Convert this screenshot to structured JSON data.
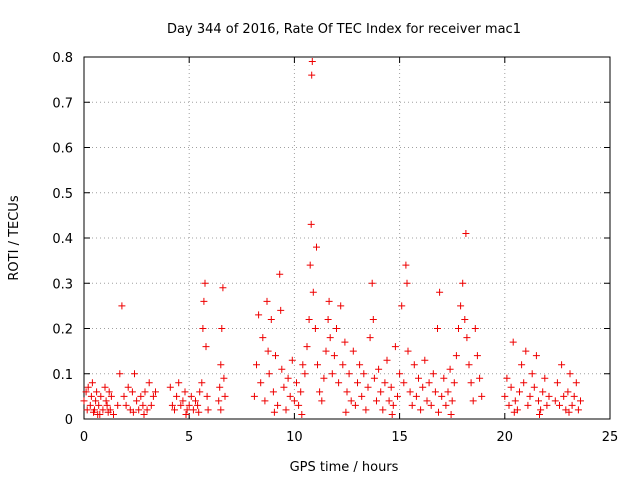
{
  "chart_data": {
    "type": "scatter",
    "title": "Day 344 of 2016, Rate Of TEC Index for receiver mac1",
    "xlabel": "GPS time / hours",
    "ylabel": "ROTI / TECUs",
    "xlim": [
      0,
      25
    ],
    "ylim": [
      0,
      0.8
    ],
    "xticks": [
      "0",
      "5",
      "10",
      "15",
      "20",
      "25"
    ],
    "yticks": [
      "0",
      "0.1",
      "0.2",
      "0.3",
      "0.4",
      "0.5",
      "0.6",
      "0.7",
      "0.8"
    ],
    "grid": true,
    "marker": "plus",
    "color": "#ee0000",
    "series": [
      {
        "name": "ROTI",
        "points": [
          [
            0.0,
            0.04
          ],
          [
            0.1,
            0.06
          ],
          [
            0.15,
            0.02
          ],
          [
            0.2,
            0.07
          ],
          [
            0.3,
            0.03
          ],
          [
            0.35,
            0.05
          ],
          [
            0.4,
            0.08
          ],
          [
            0.5,
            0.02
          ],
          [
            0.55,
            0.04
          ],
          [
            0.6,
            0.06
          ],
          [
            0.7,
            0.03
          ],
          [
            0.75,
            0.01
          ],
          [
            0.8,
            0.05
          ],
          [
            0.9,
            0.02
          ],
          [
            1.0,
            0.07
          ],
          [
            1.05,
            0.04
          ],
          [
            1.1,
            0.03
          ],
          [
            1.2,
            0.06
          ],
          [
            1.25,
            0.02
          ],
          [
            1.3,
            0.05
          ],
          [
            1.4,
            0.01
          ],
          [
            0.45,
            0.015
          ],
          [
            0.65,
            0.01
          ],
          [
            1.15,
            0.015
          ],
          [
            1.6,
            0.03
          ],
          [
            1.7,
            0.1
          ],
          [
            1.8,
            0.25
          ],
          [
            1.9,
            0.05
          ],
          [
            2.0,
            0.03
          ],
          [
            2.1,
            0.07
          ],
          [
            2.2,
            0.02
          ],
          [
            2.3,
            0.06
          ],
          [
            2.4,
            0.1
          ],
          [
            2.5,
            0.04
          ],
          [
            2.6,
            0.02
          ],
          [
            2.7,
            0.05
          ],
          [
            2.8,
            0.03
          ],
          [
            2.9,
            0.06
          ],
          [
            3.0,
            0.02
          ],
          [
            3.1,
            0.08
          ],
          [
            3.2,
            0.03
          ],
          [
            3.3,
            0.05
          ],
          [
            3.4,
            0.06
          ],
          [
            2.35,
            0.015
          ],
          [
            2.85,
            0.01
          ],
          [
            4.1,
            0.07
          ],
          [
            4.2,
            0.03
          ],
          [
            4.3,
            0.02
          ],
          [
            4.4,
            0.05
          ],
          [
            4.5,
            0.08
          ],
          [
            4.6,
            0.03
          ],
          [
            4.7,
            0.04
          ],
          [
            4.8,
            0.06
          ],
          [
            4.9,
            0.02
          ],
          [
            5.0,
            0.03
          ],
          [
            5.1,
            0.05
          ],
          [
            5.2,
            0.02
          ],
          [
            5.3,
            0.04
          ],
          [
            5.4,
            0.03
          ],
          [
            5.5,
            0.06
          ],
          [
            5.6,
            0.08
          ],
          [
            5.65,
            0.2
          ],
          [
            5.7,
            0.26
          ],
          [
            5.75,
            0.3
          ],
          [
            5.8,
            0.16
          ],
          [
            5.85,
            0.05
          ],
          [
            5.9,
            0.02
          ],
          [
            4.85,
            0.01
          ],
          [
            5.45,
            0.015
          ],
          [
            6.4,
            0.04
          ],
          [
            6.45,
            0.07
          ],
          [
            6.5,
            0.12
          ],
          [
            6.55,
            0.2
          ],
          [
            6.6,
            0.29
          ],
          [
            6.65,
            0.09
          ],
          [
            6.7,
            0.05
          ],
          [
            6.5,
            0.02
          ],
          [
            8.1,
            0.05
          ],
          [
            8.2,
            0.12
          ],
          [
            8.3,
            0.23
          ],
          [
            8.4,
            0.08
          ],
          [
            8.5,
            0.18
          ],
          [
            8.6,
            0.04
          ],
          [
            8.7,
            0.26
          ],
          [
            8.75,
            0.15
          ],
          [
            8.8,
            0.1
          ],
          [
            8.9,
            0.22
          ],
          [
            9.0,
            0.06
          ],
          [
            9.1,
            0.14
          ],
          [
            9.2,
            0.03
          ],
          [
            9.3,
            0.32
          ],
          [
            9.35,
            0.24
          ],
          [
            9.4,
            0.11
          ],
          [
            9.5,
            0.07
          ],
          [
            9.6,
            0.02
          ],
          [
            9.7,
            0.09
          ],
          [
            9.8,
            0.05
          ],
          [
            9.9,
            0.13
          ],
          [
            10.0,
            0.04
          ],
          [
            10.1,
            0.08
          ],
          [
            10.2,
            0.03
          ],
          [
            10.3,
            0.06
          ],
          [
            10.4,
            0.12
          ],
          [
            10.5,
            0.1
          ],
          [
            10.6,
            0.16
          ],
          [
            10.7,
            0.22
          ],
          [
            10.75,
            0.34
          ],
          [
            10.8,
            0.43
          ],
          [
            10.82,
            0.76
          ],
          [
            10.85,
            0.79
          ],
          [
            10.9,
            0.28
          ],
          [
            11.0,
            0.2
          ],
          [
            11.05,
            0.38
          ],
          [
            11.1,
            0.12
          ],
          [
            11.2,
            0.06
          ],
          [
            11.3,
            0.04
          ],
          [
            11.4,
            0.09
          ],
          [
            11.5,
            0.15
          ],
          [
            11.6,
            0.22
          ],
          [
            11.65,
            0.26
          ],
          [
            11.7,
            0.18
          ],
          [
            11.8,
            0.1
          ],
          [
            11.9,
            0.14
          ],
          [
            12.0,
            0.2
          ],
          [
            12.1,
            0.08
          ],
          [
            12.2,
            0.25
          ],
          [
            12.3,
            0.12
          ],
          [
            12.4,
            0.17
          ],
          [
            12.5,
            0.06
          ],
          [
            12.6,
            0.1
          ],
          [
            12.7,
            0.04
          ],
          [
            12.8,
            0.15
          ],
          [
            12.9,
            0.03
          ],
          [
            13.0,
            0.08
          ],
          [
            13.1,
            0.12
          ],
          [
            13.2,
            0.05
          ],
          [
            13.3,
            0.1
          ],
          [
            13.4,
            0.02
          ],
          [
            13.5,
            0.07
          ],
          [
            13.6,
            0.18
          ],
          [
            13.7,
            0.3
          ],
          [
            13.75,
            0.22
          ],
          [
            13.8,
            0.09
          ],
          [
            13.9,
            0.04
          ],
          [
            14.0,
            0.11
          ],
          [
            14.1,
            0.06
          ],
          [
            14.2,
            0.02
          ],
          [
            14.3,
            0.08
          ],
          [
            14.4,
            0.13
          ],
          [
            14.5,
            0.04
          ],
          [
            14.6,
            0.07
          ],
          [
            14.7,
            0.03
          ],
          [
            14.8,
            0.16
          ],
          [
            14.9,
            0.05
          ],
          [
            15.0,
            0.1
          ],
          [
            15.1,
            0.25
          ],
          [
            15.2,
            0.08
          ],
          [
            15.3,
            0.34
          ],
          [
            15.35,
            0.3
          ],
          [
            15.4,
            0.15
          ],
          [
            15.5,
            0.06
          ],
          [
            15.6,
            0.03
          ],
          [
            15.7,
            0.12
          ],
          [
            15.8,
            0.05
          ],
          [
            15.9,
            0.09
          ],
          [
            16.0,
            0.02
          ],
          [
            16.1,
            0.07
          ],
          [
            16.2,
            0.13
          ],
          [
            16.3,
            0.04
          ],
          [
            16.4,
            0.08
          ],
          [
            16.5,
            0.03
          ],
          [
            16.6,
            0.1
          ],
          [
            16.7,
            0.06
          ],
          [
            16.8,
            0.2
          ],
          [
            16.9,
            0.28
          ],
          [
            17.0,
            0.05
          ],
          [
            17.1,
            0.09
          ],
          [
            17.2,
            0.03
          ],
          [
            17.3,
            0.06
          ],
          [
            17.4,
            0.11
          ],
          [
            17.5,
            0.04
          ],
          [
            17.6,
            0.08
          ],
          [
            17.7,
            0.14
          ],
          [
            17.8,
            0.2
          ],
          [
            17.9,
            0.25
          ],
          [
            18.0,
            0.3
          ],
          [
            18.1,
            0.22
          ],
          [
            18.15,
            0.41
          ],
          [
            18.2,
            0.18
          ],
          [
            18.3,
            0.12
          ],
          [
            18.4,
            0.08
          ],
          [
            18.5,
            0.04
          ],
          [
            18.6,
            0.2
          ],
          [
            18.7,
            0.14
          ],
          [
            18.8,
            0.09
          ],
          [
            18.9,
            0.05
          ],
          [
            9.05,
            0.015
          ],
          [
            10.35,
            0.01
          ],
          [
            12.45,
            0.015
          ],
          [
            14.65,
            0.01
          ],
          [
            16.85,
            0.015
          ],
          [
            17.45,
            0.01
          ],
          [
            20.0,
            0.05
          ],
          [
            20.1,
            0.09
          ],
          [
            20.2,
            0.03
          ],
          [
            20.3,
            0.07
          ],
          [
            20.4,
            0.17
          ],
          [
            20.5,
            0.04
          ],
          [
            20.6,
            0.02
          ],
          [
            20.7,
            0.06
          ],
          [
            20.8,
            0.12
          ],
          [
            20.9,
            0.08
          ],
          [
            21.0,
            0.15
          ],
          [
            21.1,
            0.03
          ],
          [
            21.2,
            0.05
          ],
          [
            21.3,
            0.1
          ],
          [
            21.4,
            0.07
          ],
          [
            21.5,
            0.14
          ],
          [
            21.6,
            0.04
          ],
          [
            21.7,
            0.02
          ],
          [
            21.8,
            0.06
          ],
          [
            21.9,
            0.09
          ],
          [
            22.0,
            0.03
          ],
          [
            22.1,
            0.05
          ],
          [
            20.45,
            0.015
          ],
          [
            21.65,
            0.01
          ],
          [
            22.4,
            0.04
          ],
          [
            22.5,
            0.08
          ],
          [
            22.6,
            0.03
          ],
          [
            22.7,
            0.12
          ],
          [
            22.8,
            0.05
          ],
          [
            22.9,
            0.02
          ],
          [
            23.0,
            0.06
          ],
          [
            23.1,
            0.1
          ],
          [
            23.2,
            0.03
          ],
          [
            23.3,
            0.05
          ],
          [
            23.4,
            0.08
          ],
          [
            23.5,
            0.02
          ],
          [
            23.6,
            0.04
          ],
          [
            23.05,
            0.015
          ]
        ]
      }
    ]
  }
}
